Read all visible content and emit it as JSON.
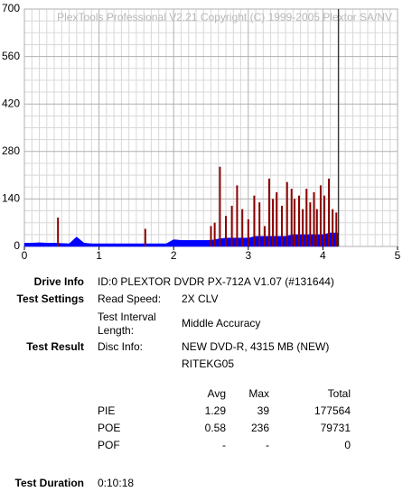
{
  "chart_data": {
    "type": "bar",
    "title": "PlexTools Professional V2.21 Copyright (C) 1999-2005 Plextor SA/NV",
    "xlim": [
      0,
      5
    ],
    "xticks": [
      0,
      1,
      2,
      3,
      4,
      5
    ],
    "ylim": [
      0,
      700
    ],
    "yticks": [
      0,
      140,
      280,
      420,
      560,
      700
    ],
    "grid": true,
    "marker_x": 4.21,
    "series": [
      {
        "color": "#0000ff",
        "x": [
          0,
          0.1,
          0.2,
          0.3,
          0.4,
          0.5,
          0.6,
          0.7,
          0.8,
          0.9,
          1.0,
          1.1,
          1.2,
          1.3,
          1.4,
          1.5,
          1.6,
          1.7,
          1.8,
          1.9,
          2.0,
          2.1,
          2.2,
          2.3,
          2.4,
          2.5,
          2.6,
          2.7,
          2.8,
          2.9,
          3.0,
          3.1,
          3.2,
          3.3,
          3.4,
          3.5,
          3.6,
          3.7,
          3.8,
          3.9,
          4.0,
          4.1,
          4.2
        ],
        "values": [
          10,
          10,
          11,
          10,
          10,
          9,
          8,
          28,
          10,
          8,
          8,
          8,
          8,
          8,
          8,
          8,
          8,
          8,
          8,
          8,
          20,
          18,
          18,
          18,
          18,
          18,
          22,
          25,
          25,
          25,
          25,
          30,
          30,
          30,
          30,
          30,
          35,
          35,
          35,
          35,
          35,
          40,
          40
        ]
      },
      {
        "color": "#8b0000",
        "x": [
          0.45,
          1.62,
          2.5,
          2.55,
          2.62,
          2.7,
          2.78,
          2.85,
          2.92,
          3.0,
          3.08,
          3.15,
          3.22,
          3.28,
          3.33,
          3.38,
          3.45,
          3.52,
          3.58,
          3.62,
          3.68,
          3.73,
          3.78,
          3.83,
          3.88,
          3.92,
          3.97,
          4.02,
          4.08,
          4.13,
          4.18
        ],
        "values": [
          85,
          52,
          60,
          70,
          235,
          90,
          120,
          180,
          110,
          80,
          150,
          130,
          60,
          200,
          140,
          160,
          120,
          190,
          170,
          140,
          150,
          110,
          170,
          130,
          160,
          110,
          180,
          150,
          200,
          110,
          100
        ]
      }
    ]
  },
  "report": {
    "drive_info": {
      "label": "Drive Info",
      "value": "ID:0 PLEXTOR DVDR PX-712A V1.07 (#131644)"
    },
    "test_settings": {
      "label": "Test Settings",
      "speed_label": "Read Speed:",
      "speed": "2X CLV",
      "interval_label_1": "Test Interval",
      "interval_label_2": "Length:",
      "interval": "Middle Accuracy"
    },
    "test_result": {
      "label": "Test Result",
      "disc_label": "Disc Info:",
      "disc_1": "NEW DVD-R, 4315 MB (NEW)",
      "disc_2": "RITEKG05"
    },
    "table": {
      "header": [
        "Avg",
        "Max",
        "Total"
      ],
      "rows": [
        [
          "PIE",
          "1.29",
          "39",
          "177564"
        ],
        [
          "POE",
          "0.58",
          "236",
          "79731"
        ],
        [
          "POF",
          "-",
          "-",
          "0"
        ]
      ]
    },
    "test_duration": {
      "label": "Test Duration",
      "value": "0:10:18"
    }
  }
}
